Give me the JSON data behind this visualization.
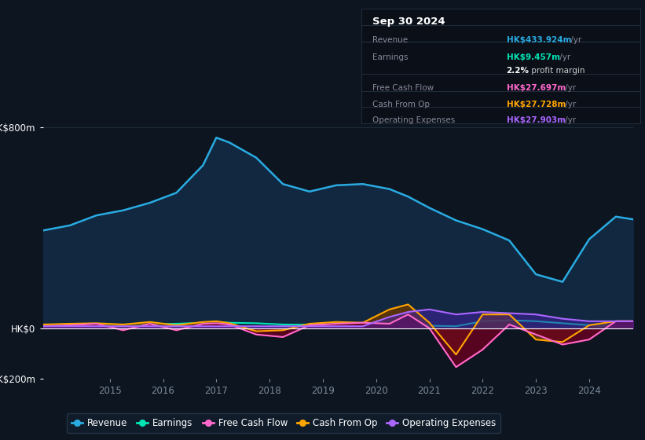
{
  "bg_color": "#0d1520",
  "plot_bg_color": "#0d1520",
  "years": [
    2013.75,
    2014.25,
    2014.75,
    2015.25,
    2015.75,
    2016.25,
    2016.75,
    2017.0,
    2017.25,
    2017.75,
    2018.25,
    2018.75,
    2019.25,
    2019.75,
    2020.25,
    2020.6,
    2021.0,
    2021.5,
    2022.0,
    2022.5,
    2023.0,
    2023.5,
    2024.0,
    2024.5,
    2024.83
  ],
  "revenue": [
    390,
    410,
    450,
    470,
    500,
    540,
    650,
    760,
    740,
    680,
    575,
    545,
    570,
    575,
    555,
    525,
    480,
    430,
    395,
    350,
    215,
    185,
    355,
    445,
    434
  ],
  "earnings": [
    8,
    10,
    12,
    14,
    16,
    18,
    22,
    25,
    22,
    20,
    15,
    14,
    16,
    18,
    16,
    12,
    10,
    8,
    28,
    32,
    28,
    20,
    12,
    10,
    9
  ],
  "free_cash_flow": [
    8,
    12,
    18,
    -8,
    18,
    -8,
    18,
    20,
    15,
    -25,
    -35,
    12,
    18,
    22,
    18,
    55,
    0,
    -155,
    -85,
    15,
    -25,
    -65,
    -45,
    28,
    28
  ],
  "cash_from_op": [
    15,
    18,
    20,
    15,
    25,
    12,
    25,
    28,
    20,
    -12,
    -8,
    18,
    25,
    22,
    75,
    95,
    22,
    -105,
    55,
    55,
    -45,
    -55,
    12,
    28,
    28
  ],
  "operating_expenses": [
    8,
    8,
    8,
    8,
    8,
    8,
    8,
    8,
    8,
    8,
    8,
    8,
    8,
    8,
    45,
    65,
    75,
    55,
    65,
    60,
    55,
    38,
    28,
    28,
    28
  ],
  "ylim": [
    -200,
    800
  ],
  "yticks": [
    -200,
    0,
    800
  ],
  "ytick_labels": [
    "-HK$200m",
    "HK$0",
    "HK$800m"
  ],
  "xticks": [
    2015,
    2016,
    2017,
    2018,
    2019,
    2020,
    2021,
    2022,
    2023,
    2024
  ],
  "revenue_color": "#29abe2",
  "revenue_fill": "#122840",
  "earnings_color": "#00e5b4",
  "free_cash_flow_color": "#ff69cc",
  "cash_from_op_color": "#ffa500",
  "operating_expenses_color": "#aa66ff",
  "grid_color": "#253545",
  "zero_line_color": "#ffffff",
  "text_color": "#ffffff",
  "axis_label_color": "#7a8a9a",
  "legend_items": [
    {
      "label": "Revenue",
      "color": "#29abe2"
    },
    {
      "label": "Earnings",
      "color": "#00e5b4"
    },
    {
      "label": "Free Cash Flow",
      "color": "#ff69cc"
    },
    {
      "label": "Cash From Op",
      "color": "#ffa500"
    },
    {
      "label": "Operating Expenses",
      "color": "#aa66ff"
    }
  ],
  "infobox": {
    "date": "Sep 30 2024",
    "rows": [
      {
        "label": "Revenue",
        "value": "HK$433.924m",
        "suffix": " /yr",
        "value_color": "#29abe2"
      },
      {
        "label": "Earnings",
        "value": "HK$9.457m",
        "suffix": " /yr",
        "value_color": "#00e5b4"
      },
      {
        "label": "",
        "value": "2.2%",
        "suffix": " profit margin",
        "value_color": "#ffffff"
      },
      {
        "label": "Free Cash Flow",
        "value": "HK$27.697m",
        "suffix": " /yr",
        "value_color": "#ff69cc"
      },
      {
        "label": "Cash From Op",
        "value": "HK$27.728m",
        "suffix": " /yr",
        "value_color": "#ffa500"
      },
      {
        "label": "Operating Expenses",
        "value": "HK$27.903m",
        "suffix": " /yr",
        "value_color": "#aa66ff"
      }
    ]
  }
}
